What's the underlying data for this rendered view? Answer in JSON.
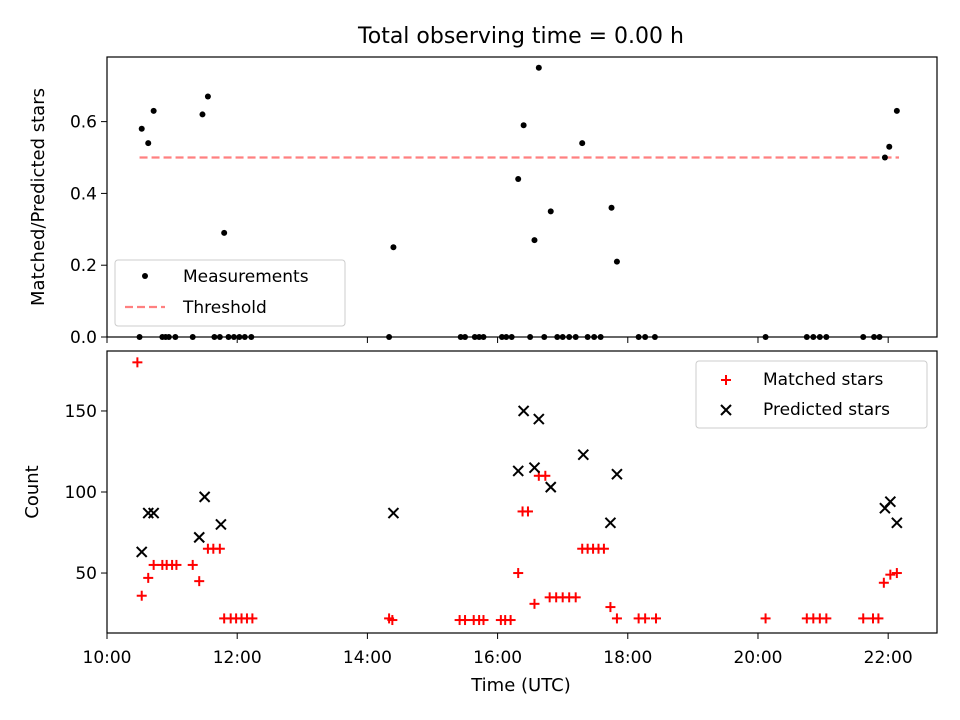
{
  "figure": {
    "title": "Total observing time = 0.00 h",
    "xlabel": "Time (UTC)"
  },
  "colors": {
    "measurement": "#000000",
    "threshold": "#ff8080",
    "matched": "#ff0000",
    "predicted": "#000000"
  },
  "chart_data": [
    {
      "type": "scatter",
      "xlabel": "",
      "ylabel": "Matched/Predicted stars",
      "xlim": [
        "10:00",
        "22:45"
      ],
      "ylim": [
        0,
        0.78
      ],
      "yticks": [
        0.0,
        0.2,
        0.4,
        0.6
      ],
      "ytick_labels": [
        "0.0",
        "0.2",
        "0.4",
        "0.6"
      ],
      "xticks": [
        "10:00",
        "12:00",
        "14:00",
        "16:00",
        "18:00",
        "20:00",
        "22:00"
      ],
      "show_xtick_labels": false,
      "grid": false,
      "legend": {
        "placement": "lower-left",
        "entries": [
          "Measurements",
          "Threshold"
        ]
      },
      "series": [
        {
          "name": "Measurements",
          "marker": "point",
          "points": [
            [
              "10:30",
              0.0
            ],
            [
              "10:32",
              0.58
            ],
            [
              "10:38",
              0.54
            ],
            [
              "10:43",
              0.63
            ],
            [
              "10:51",
              0.0
            ],
            [
              "10:54",
              0.0
            ],
            [
              "10:57",
              0.0
            ],
            [
              "11:03",
              0.0
            ],
            [
              "11:19",
              0.0
            ],
            [
              "11:28",
              0.62
            ],
            [
              "11:33",
              0.67
            ],
            [
              "11:39",
              0.0
            ],
            [
              "11:44",
              0.0
            ],
            [
              "11:48",
              0.29
            ],
            [
              "11:52",
              0.0
            ],
            [
              "11:57",
              0.0
            ],
            [
              "12:02",
              0.0
            ],
            [
              "12:07",
              0.0
            ],
            [
              "12:13",
              0.0
            ],
            [
              "14:20",
              0.0
            ],
            [
              "14:24",
              0.25
            ],
            [
              "15:26",
              0.0
            ],
            [
              "15:30",
              0.0
            ],
            [
              "15:39",
              0.0
            ],
            [
              "15:43",
              0.0
            ],
            [
              "15:47",
              0.0
            ],
            [
              "16:04",
              0.0
            ],
            [
              "16:08",
              0.0
            ],
            [
              "16:13",
              0.0
            ],
            [
              "16:19",
              0.44
            ],
            [
              "16:24",
              0.59
            ],
            [
              "16:30",
              0.0
            ],
            [
              "16:34",
              0.27
            ],
            [
              "16:38",
              0.75
            ],
            [
              "16:43",
              0.0
            ],
            [
              "16:49",
              0.35
            ],
            [
              "16:55",
              0.0
            ],
            [
              "17:00",
              0.0
            ],
            [
              "17:06",
              0.0
            ],
            [
              "17:12",
              0.0
            ],
            [
              "17:18",
              0.54
            ],
            [
              "17:23",
              0.0
            ],
            [
              "17:29",
              0.0
            ],
            [
              "17:35",
              0.0
            ],
            [
              "17:45",
              0.36
            ],
            [
              "17:50",
              0.21
            ],
            [
              "18:10",
              0.0
            ],
            [
              "18:16",
              0.0
            ],
            [
              "18:25",
              0.0
            ],
            [
              "20:07",
              0.0
            ],
            [
              "20:45",
              0.0
            ],
            [
              "20:51",
              0.0
            ],
            [
              "20:57",
              0.0
            ],
            [
              "21:03",
              0.0
            ],
            [
              "21:37",
              0.0
            ],
            [
              "21:47",
              0.0
            ],
            [
              "21:52",
              0.0
            ],
            [
              "21:57",
              0.5
            ],
            [
              "22:01",
              0.53
            ],
            [
              "22:08",
              0.63
            ]
          ]
        },
        {
          "name": "Threshold",
          "style": "dashed",
          "points": [
            [
              "10:30",
              0.5
            ],
            [
              "22:10",
              0.5
            ]
          ]
        }
      ]
    },
    {
      "type": "scatter",
      "xlabel": "Time (UTC)",
      "ylabel": "Count",
      "xlim": [
        "10:00",
        "22:45"
      ],
      "ylim": [
        13,
        187
      ],
      "yticks": [
        50,
        100,
        150
      ],
      "xticks": [
        "10:00",
        "12:00",
        "14:00",
        "16:00",
        "18:00",
        "20:00",
        "22:00"
      ],
      "show_xtick_labels": true,
      "grid": false,
      "legend": {
        "placement": "top-right",
        "entries": [
          "Matched stars",
          "Predicted stars"
        ]
      },
      "series": [
        {
          "name": "Matched stars",
          "marker": "plus",
          "points": [
            [
              "10:28",
              180
            ],
            [
              "10:32",
              36
            ],
            [
              "10:38",
              47
            ],
            [
              "10:43",
              55
            ],
            [
              "10:51",
              55
            ],
            [
              "10:55",
              55
            ],
            [
              "11:00",
              55
            ],
            [
              "11:04",
              55
            ],
            [
              "11:19",
              55
            ],
            [
              "11:25",
              45
            ],
            [
              "11:33",
              65
            ],
            [
              "11:38",
              65
            ],
            [
              "11:44",
              65
            ],
            [
              "11:48",
              22
            ],
            [
              "11:54",
              22
            ],
            [
              "11:59",
              22
            ],
            [
              "12:04",
              22
            ],
            [
              "12:09",
              22
            ],
            [
              "12:14",
              22
            ],
            [
              "14:20",
              22
            ],
            [
              "14:23",
              21
            ],
            [
              "15:25",
              21
            ],
            [
              "15:30",
              21
            ],
            [
              "15:38",
              21
            ],
            [
              "15:43",
              21
            ],
            [
              "15:47",
              21
            ],
            [
              "16:03",
              21
            ],
            [
              "16:07",
              21
            ],
            [
              "16:12",
              21
            ],
            [
              "16:19",
              50
            ],
            [
              "16:23",
              88
            ],
            [
              "16:28",
              88
            ],
            [
              "16:34",
              31
            ],
            [
              "16:38",
              110
            ],
            [
              "16:44",
              110
            ],
            [
              "16:48",
              35
            ],
            [
              "16:54",
              35
            ],
            [
              "17:00",
              35
            ],
            [
              "17:06",
              35
            ],
            [
              "17:12",
              35
            ],
            [
              "17:18",
              65
            ],
            [
              "17:23",
              65
            ],
            [
              "17:28",
              65
            ],
            [
              "17:33",
              65
            ],
            [
              "17:38",
              65
            ],
            [
              "17:44",
              29
            ],
            [
              "17:50",
              22
            ],
            [
              "18:10",
              22
            ],
            [
              "18:16",
              22
            ],
            [
              "18:26",
              22
            ],
            [
              "20:07",
              22
            ],
            [
              "20:45",
              22
            ],
            [
              "20:51",
              22
            ],
            [
              "20:57",
              22
            ],
            [
              "21:03",
              22
            ],
            [
              "21:37",
              22
            ],
            [
              "21:46",
              22
            ],
            [
              "21:51",
              22
            ],
            [
              "21:56",
              44
            ],
            [
              "22:02",
              49
            ],
            [
              "22:08",
              50
            ]
          ]
        },
        {
          "name": "Predicted stars",
          "marker": "x",
          "points": [
            [
              "10:32",
              63
            ],
            [
              "10:38",
              87
            ],
            [
              "10:43",
              87
            ],
            [
              "11:25",
              72
            ],
            [
              "11:30",
              97
            ],
            [
              "11:45",
              80
            ],
            [
              "14:24",
              87
            ],
            [
              "16:19",
              113
            ],
            [
              "16:24",
              150
            ],
            [
              "16:34",
              115
            ],
            [
              "16:38",
              145
            ],
            [
              "16:49",
              103
            ],
            [
              "17:19",
              123
            ],
            [
              "17:44",
              81
            ],
            [
              "17:50",
              111
            ],
            [
              "21:57",
              90
            ],
            [
              "22:02",
              94
            ],
            [
              "22:08",
              81
            ]
          ]
        }
      ]
    }
  ]
}
